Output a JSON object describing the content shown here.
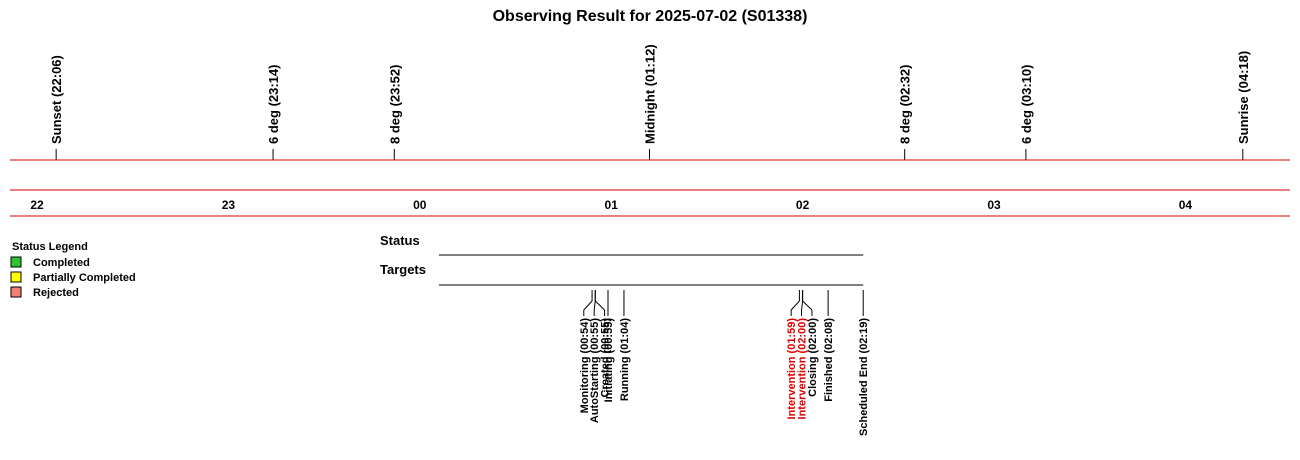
{
  "title": "Observing Result for 2025-07-02 (S01338)",
  "colors": {
    "axis": "#d40000",
    "text": "#000000",
    "alert": "#e00000",
    "completed": "#2ec42e",
    "partially_completed": "#ffff00",
    "rejected": "#f08070"
  },
  "timeline": {
    "start_time": "21:51",
    "end_time": "04:35",
    "hour_labels": [
      {
        "time": "22:00",
        "label": "22"
      },
      {
        "time": "23:00",
        "label": "23"
      },
      {
        "time": "24:00",
        "label": "00"
      },
      {
        "time": "25:00",
        "label": "01"
      },
      {
        "time": "26:00",
        "label": "02"
      },
      {
        "time": "27:00",
        "label": "03"
      },
      {
        "time": "28:00",
        "label": "04"
      }
    ]
  },
  "sky_events": [
    {
      "label": "Sunset (22:06)",
      "time": "22:06"
    },
    {
      "label": "6 deg (23:14)",
      "time": "23:14"
    },
    {
      "label": "8 deg (23:52)",
      "time": "23:52"
    },
    {
      "label": "Midnight (01:12)",
      "time": "25:12"
    },
    {
      "label": "8 deg (02:32)",
      "time": "26:32"
    },
    {
      "label": "6 deg (03:10)",
      "time": "27:10"
    },
    {
      "label": "Sunrise (04:18)",
      "time": "28:18"
    }
  ],
  "legend": {
    "title": "Status Legend",
    "items": [
      {
        "label": "Completed",
        "color": "#2ec42e"
      },
      {
        "label": "Partially Completed",
        "color": "#ffff00"
      },
      {
        "label": "Rejected",
        "color": "#f08070"
      }
    ]
  },
  "rows": {
    "status_label": "Status",
    "targets_label": "Targets",
    "start_time": "24:06",
    "end_time": "26:19"
  },
  "status_events": [
    {
      "label": "Monitoring (00:54)",
      "time": "24:54",
      "alert": false
    },
    {
      "label": "AutoStarting (00:55)",
      "time": "24:55",
      "alert": false
    },
    {
      "label": "Created (00:55)",
      "time": "24:55",
      "alert": false
    },
    {
      "label": "Initiating (00:59)",
      "time": "24:59",
      "alert": false
    },
    {
      "label": "Running (01:04)",
      "time": "25:04",
      "alert": false
    },
    {
      "label": "Intervention (01:59)",
      "time": "25:59",
      "alert": true
    },
    {
      "label": "Intervention (02:00)",
      "time": "26:00",
      "alert": true
    },
    {
      "label": "Closing (02:00)",
      "time": "26:00",
      "alert": false
    },
    {
      "label": "Finished (02:08)",
      "time": "26:08",
      "alert": false
    },
    {
      "label": "Scheduled End (02:19)",
      "time": "26:19",
      "alert": false
    }
  ]
}
